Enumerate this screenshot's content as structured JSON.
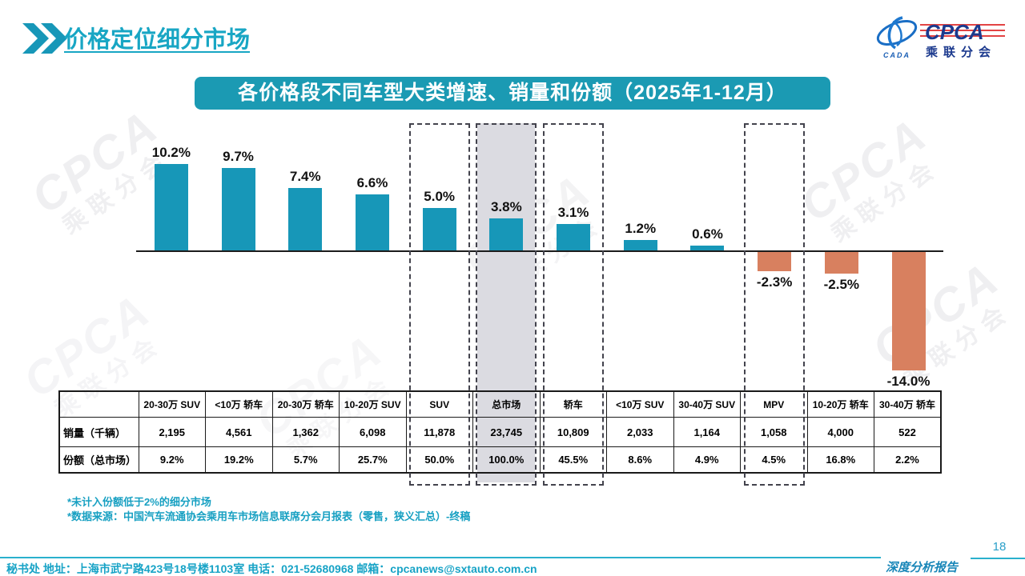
{
  "page": {
    "header_title": "价格定位细分市场",
    "page_number": "18",
    "report_label": "深度分析报告",
    "footer_text": "秘书处  地址：上海市武宁路423号18号楼1103室 电话：021-52680968   邮箱：cpcanews@sxtauto.com.cn"
  },
  "logo": {
    "cpca": "CPCA",
    "subtitle": "乘联分会",
    "cada": "CADA"
  },
  "banner": {
    "title": "各价格段不同车型大类增速、销量和份额（2025年1-12月）"
  },
  "chart_data": {
    "type": "bar",
    "title": "各价格段不同车型大类增速、销量和份额（2025年1-12月）",
    "categories": [
      "20-30万 SUV",
      "<10万 轿车",
      "20-30万 轿车",
      "10-20万 SUV",
      "SUV",
      "总市场",
      "轿车",
      "<10万 SUV",
      "30-40万 SUV",
      "MPV",
      "10-20万 轿车",
      "30-40万 轿车"
    ],
    "values": [
      10.2,
      9.7,
      7.4,
      6.6,
      5.0,
      3.8,
      3.1,
      1.2,
      0.6,
      -2.3,
      -2.5,
      -14.0
    ],
    "unit": "%",
    "highlighted_categories": [
      "SUV",
      "总市场",
      "轿车",
      "MPV"
    ],
    "gray_band_category": "总市场",
    "positive_color": "#1797b8",
    "negative_color": "#d8805f",
    "ylim": [
      -15,
      11
    ],
    "grid": false,
    "legend": false
  },
  "table": {
    "row_labels": [
      "销量（千辆）",
      "份额（总市场）"
    ],
    "columns": [
      "20-30万 SUV",
      "<10万 轿车",
      "20-30万 轿车",
      "10-20万 SUV",
      "SUV",
      "总市场",
      "轿车",
      "<10万 SUV",
      "30-40万 SUV",
      "MPV",
      "10-20万 轿车",
      "30-40万 轿车"
    ],
    "sales": [
      "2,195",
      "4,561",
      "1,362",
      "6,098",
      "11,878",
      "23,745",
      "10,809",
      "2,033",
      "1,164",
      "1,058",
      "4,000",
      "522"
    ],
    "share": [
      "9.2%",
      "19.2%",
      "5.7%",
      "25.7%",
      "50.0%",
      "100.0%",
      "45.5%",
      "8.6%",
      "4.9%",
      "4.5%",
      "16.8%",
      "2.2%"
    ]
  },
  "footnotes": [
    "*未计入份额低于2%的细分市场",
    "*数据来源：中国汽车流通协会乘用车市场信息联席分会月报表（零售，狭义汇总）-终稿"
  ],
  "colors": {
    "accent_teal": "#18a6c4",
    "banner_bg": "#1b9ab3",
    "positive_bar": "#1797b8",
    "negative_bar": "#d8805f",
    "dash_border": "#43434d",
    "gray_band": "#dbdbe1"
  }
}
